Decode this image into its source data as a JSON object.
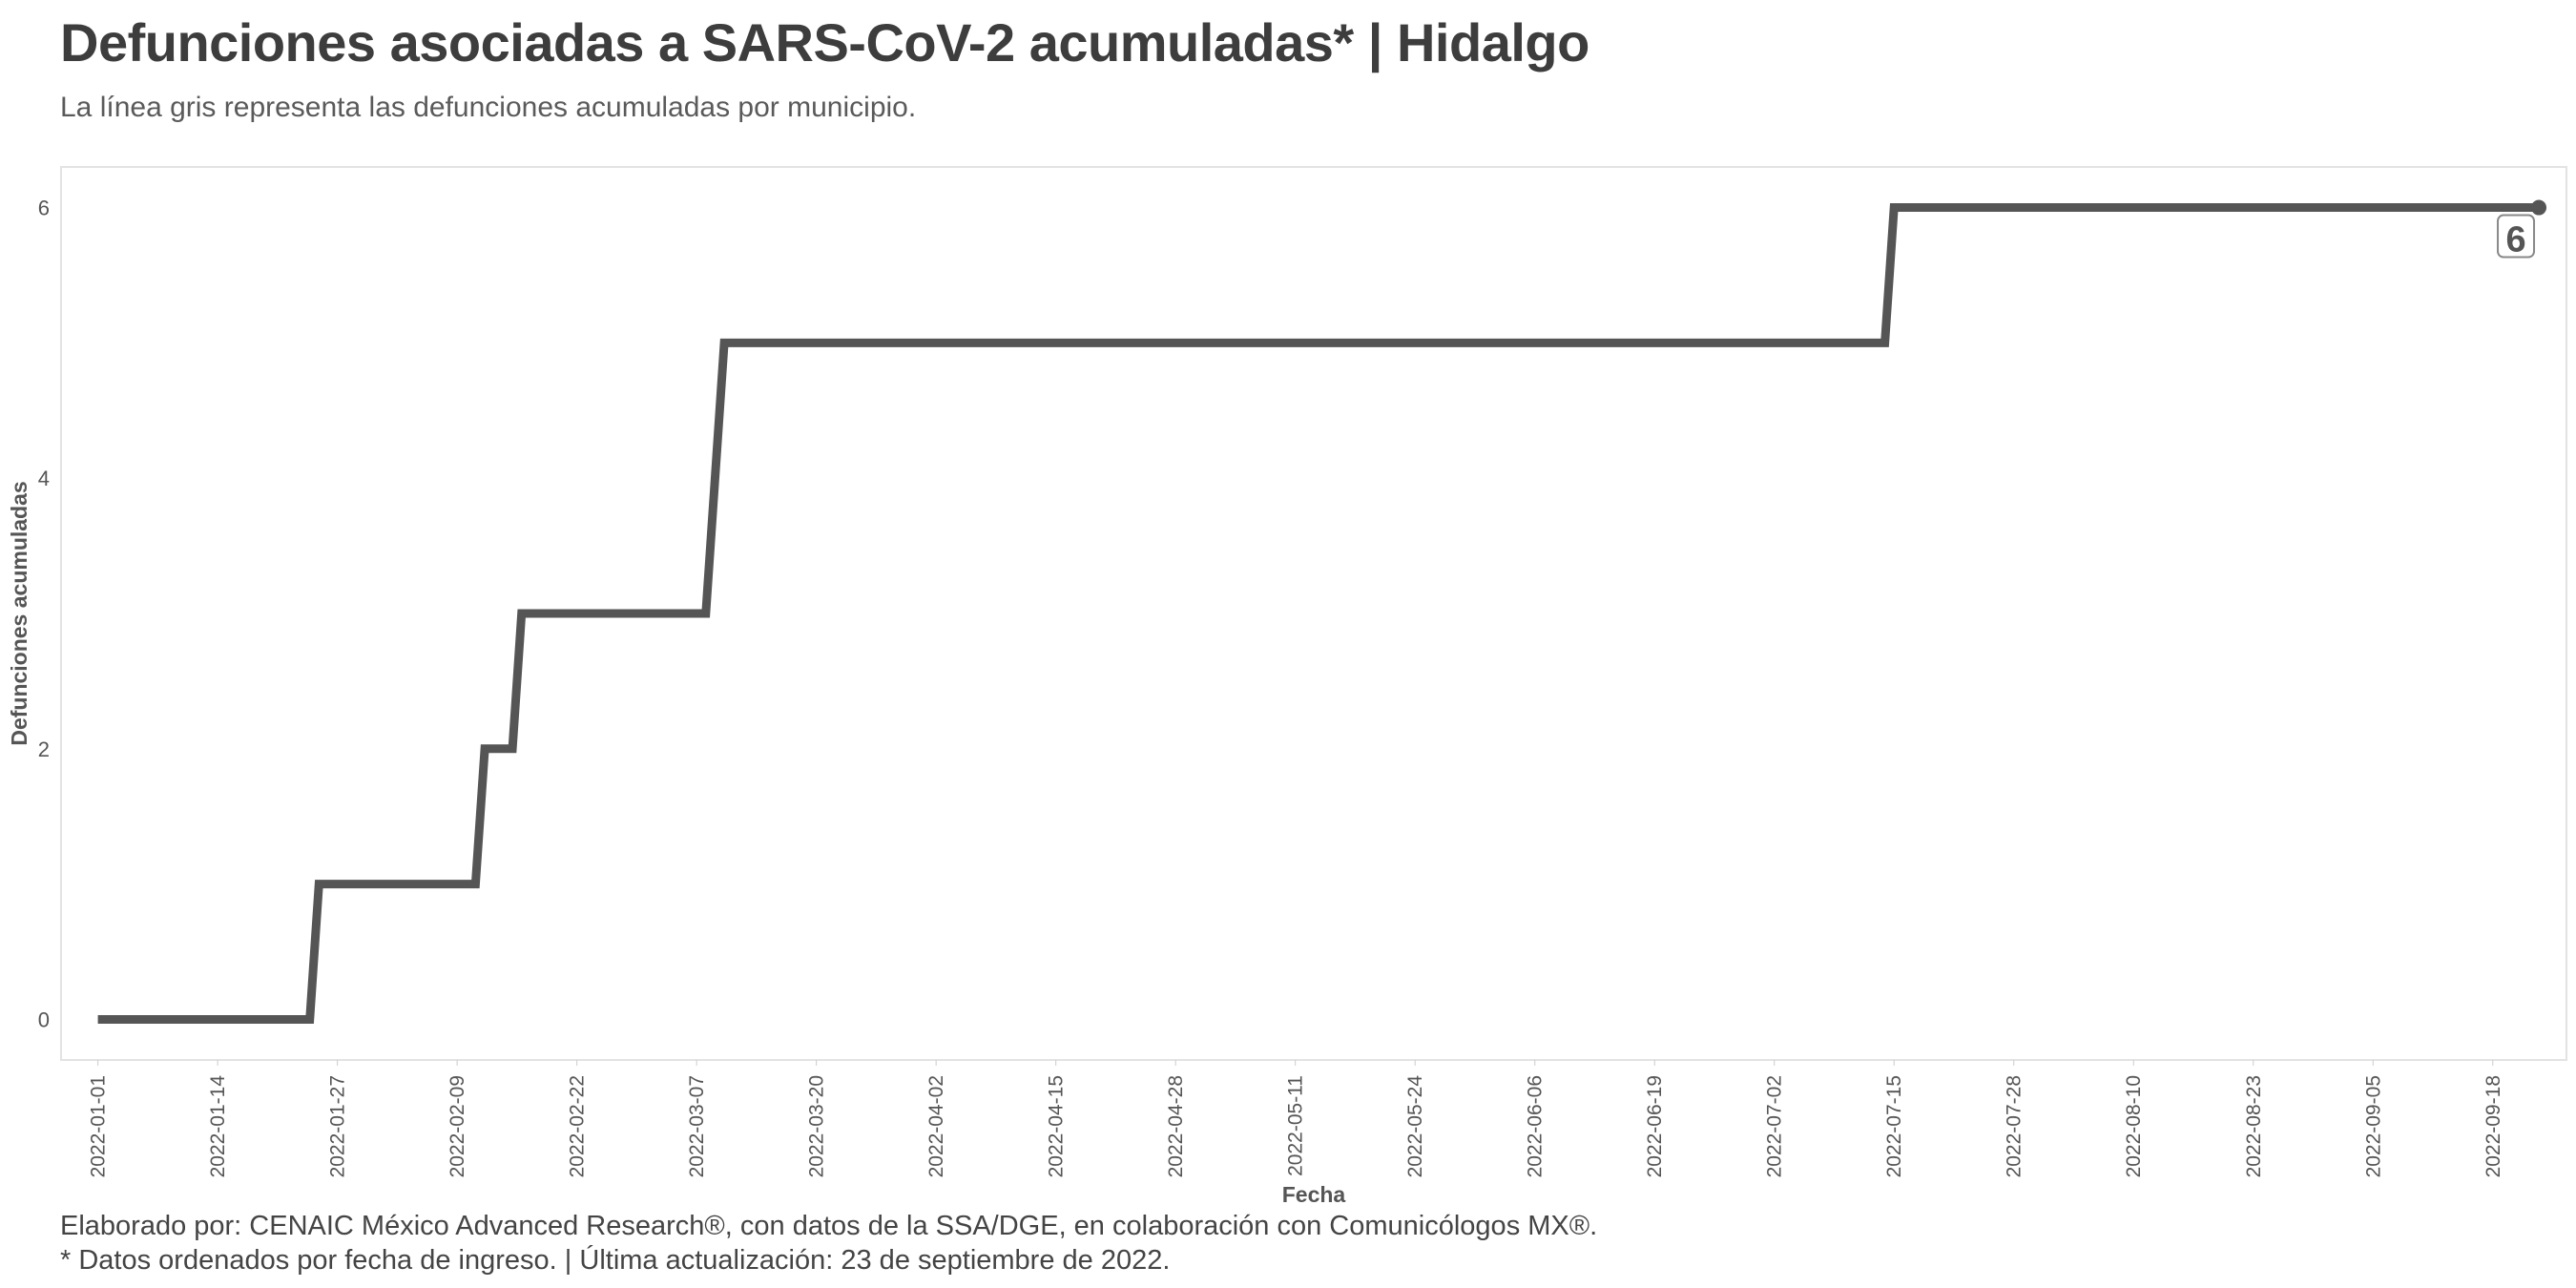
{
  "header": {
    "title": "Defunciones asociadas a SARS-CoV-2 acumuladas* | Hidalgo",
    "subtitle": "La línea gris representa las defunciones acumuladas por municipio."
  },
  "footer": {
    "line1": "Elaborado por: CENAIC México Advanced Research®, con datos de la SSA/DGE, en colaboración con Comunicólogos MX®.",
    "line2": "* Datos ordenados por fecha de ingreso. | Última actualización: 23 de septiembre de 2022."
  },
  "chart_data": {
    "type": "line",
    "step": true,
    "title": "Defunciones asociadas a SARS-CoV-2 acumuladas* | Hidalgo",
    "xlabel": "Fecha",
    "ylabel": "Defunciones acumuladas",
    "ylim": [
      -0.3,
      6.3
    ],
    "xlim": [
      "2021-12-28",
      "2022-09-26"
    ],
    "y_ticks": [
      0,
      2,
      4,
      6
    ],
    "x_ticks": [
      "2022-01-01",
      "2022-01-14",
      "2022-01-27",
      "2022-02-09",
      "2022-02-22",
      "2022-03-07",
      "2022-03-20",
      "2022-04-02",
      "2022-04-15",
      "2022-04-28",
      "2022-05-11",
      "2022-05-24",
      "2022-06-06",
      "2022-06-19",
      "2022-07-02",
      "2022-07-15",
      "2022-07-28",
      "2022-08-10",
      "2022-08-23",
      "2022-09-05",
      "2022-09-18"
    ],
    "grid": false,
    "series": [
      {
        "color": "#555555",
        "points": [
          {
            "x": "2022-01-01",
            "y": 0
          },
          {
            "x": "2022-01-24",
            "y": 0
          },
          {
            "x": "2022-01-25",
            "y": 1
          },
          {
            "x": "2022-02-11",
            "y": 1
          },
          {
            "x": "2022-02-12",
            "y": 2
          },
          {
            "x": "2022-02-15",
            "y": 2
          },
          {
            "x": "2022-02-16",
            "y": 3
          },
          {
            "x": "2022-03-08",
            "y": 3
          },
          {
            "x": "2022-03-10",
            "y": 5
          },
          {
            "x": "2022-07-14",
            "y": 5
          },
          {
            "x": "2022-07-15",
            "y": 6
          },
          {
            "x": "2022-09-23",
            "y": 6
          }
        ]
      }
    ],
    "end_label": "6"
  }
}
